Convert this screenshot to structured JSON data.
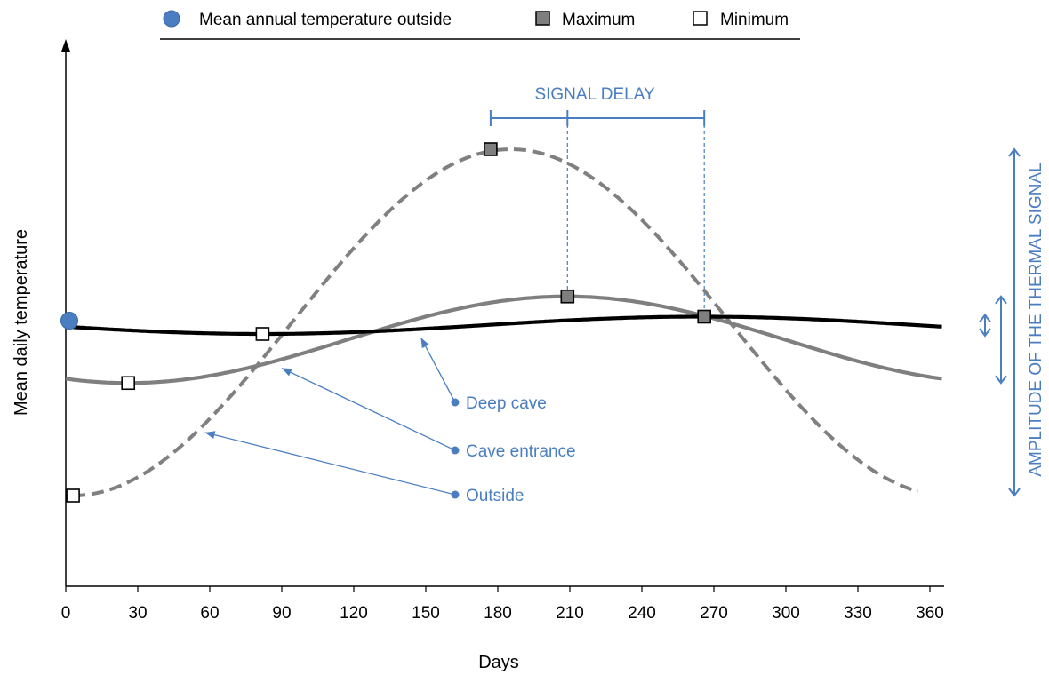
{
  "chart_data": {
    "type": "line",
    "xlabel": "Days",
    "ylabel": "Mean daily temperature",
    "xlim": [
      0,
      360
    ],
    "x_ticks": [
      0,
      30,
      60,
      90,
      120,
      150,
      180,
      210,
      240,
      270,
      300,
      330,
      360
    ],
    "y_scale": "relative",
    "y_ticks_shown": false,
    "grid": false,
    "legend": {
      "placement": "top",
      "entries": [
        {
          "label": "Mean annual temperature outside",
          "marker": "circle",
          "color": "#4a7ec0"
        },
        {
          "label": "Maximum",
          "marker": "square",
          "color": "#7f7f7f"
        },
        {
          "label": "Minimum",
          "marker": "square",
          "color": "#ffffff"
        }
      ]
    },
    "mean_annual_temperature": {
      "x": 0,
      "y": 0
    },
    "series": [
      {
        "name": "Outside",
        "style": "dashed",
        "color": "#808080",
        "mean": 0,
        "amplitude": 6.0,
        "min_day": 3,
        "max_day": 177,
        "x_range": [
          3,
          355
        ],
        "max_point": {
          "x": 177,
          "y": 6.0
        },
        "min_point": {
          "x": 3,
          "y": -6.0
        }
      },
      {
        "name": "Cave entrance",
        "style": "solid",
        "color": "#7f7f7f",
        "mean": -0.6,
        "amplitude": 1.5,
        "min_day": 26,
        "max_day": 209,
        "x_range": [
          0,
          365
        ],
        "max_point": {
          "x": 209,
          "y": 0.9
        },
        "min_point": {
          "x": 26,
          "y": -2.1
        }
      },
      {
        "name": "Deep cave",
        "style": "solid",
        "color": "#000000",
        "mean": -0.1,
        "amplitude": 0.3,
        "min_day": 82,
        "max_day": 266,
        "x_range": [
          0,
          365
        ],
        "max_point": {
          "x": 266,
          "y": 0.2
        },
        "min_point": {
          "x": 82,
          "y": -0.4
        }
      }
    ],
    "annotations": {
      "signal_delay": {
        "label": "SIGNAL DELAY",
        "from_day": 177,
        "mid_day": 209,
        "to_day": 266
      },
      "amplitude": {
        "label": "AMPLITUDE OF THE THERMAL SIGNAL"
      },
      "series_labels": [
        {
          "text": "Deep cave",
          "series": "Deep cave",
          "arrow_to_day": 148
        },
        {
          "text": "Cave entrance",
          "series": "Cave entrance",
          "arrow_to_day": 90
        },
        {
          "text": "Outside",
          "series": "Outside",
          "arrow_to_day": 58
        }
      ]
    },
    "colors": {
      "annotation": "#4a7ec0",
      "axis": "#000000"
    }
  }
}
